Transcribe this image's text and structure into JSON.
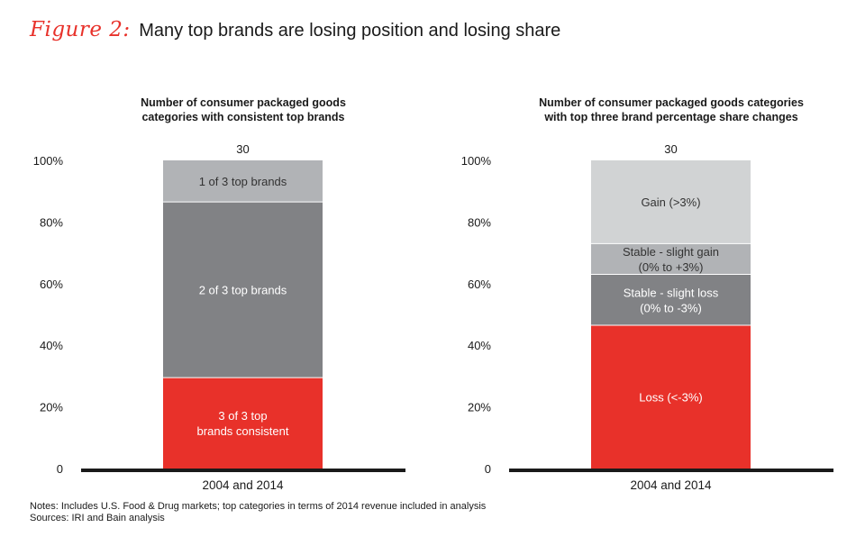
{
  "figure": {
    "label": "Figure 2:",
    "title": "Many top brands are losing position and losing share"
  },
  "chart_data": [
    {
      "type": "bar",
      "stacked": true,
      "title": [
        "Number of consumer packaged goods",
        "categories with consistent top brands"
      ],
      "categories": [
        "2004 and 2014"
      ],
      "total_label": "30",
      "y_ticks": [
        "100%",
        "80%",
        "60%",
        "40%",
        "20%",
        "0"
      ],
      "ylim": [
        0,
        100
      ],
      "series": [
        {
          "name": [
            "3 of 3 top",
            "brands consistent"
          ],
          "values": [
            29.5
          ],
          "color": "#e8312a",
          "text_color": "#ffffff"
        },
        {
          "name": [
            "2 of 3 top brands"
          ],
          "values": [
            57
          ],
          "color": "#818285",
          "text_color": "#ffffff"
        },
        {
          "name": [
            "1 of 3 top brands"
          ],
          "values": [
            13.5
          ],
          "color": "#b1b3b6",
          "text_color": "#333333"
        }
      ]
    },
    {
      "type": "bar",
      "stacked": true,
      "title": [
        "Number of consumer packaged goods categories",
        "with top three brand percentage share changes"
      ],
      "categories": [
        "2004 and 2014"
      ],
      "total_label": "30",
      "y_ticks": [
        "100%",
        "80%",
        "60%",
        "40%",
        "20%",
        "0"
      ],
      "ylim": [
        0,
        100
      ],
      "series": [
        {
          "name": [
            "Loss (<-3%)"
          ],
          "values": [
            46.5
          ],
          "color": "#e8312a",
          "text_color": "#ffffff"
        },
        {
          "name": [
            "Stable - slight loss",
            "(0% to -3%)"
          ],
          "values": [
            16.5
          ],
          "color": "#818285",
          "text_color": "#ffffff"
        },
        {
          "name": [
            "Stable - slight gain",
            "(0% to +3%)"
          ],
          "values": [
            10
          ],
          "color": "#b1b3b6",
          "text_color": "#333333"
        },
        {
          "name": [
            "Gain (>3%)"
          ],
          "values": [
            27
          ],
          "color": "#d1d3d4",
          "text_color": "#333333"
        }
      ]
    }
  ],
  "notes": {
    "line1": "Notes: Includes U.S. Food & Drug markets; top categories in terms of 2014 revenue included in analysis",
    "line2": "Sources: IRI and Bain analysis"
  }
}
